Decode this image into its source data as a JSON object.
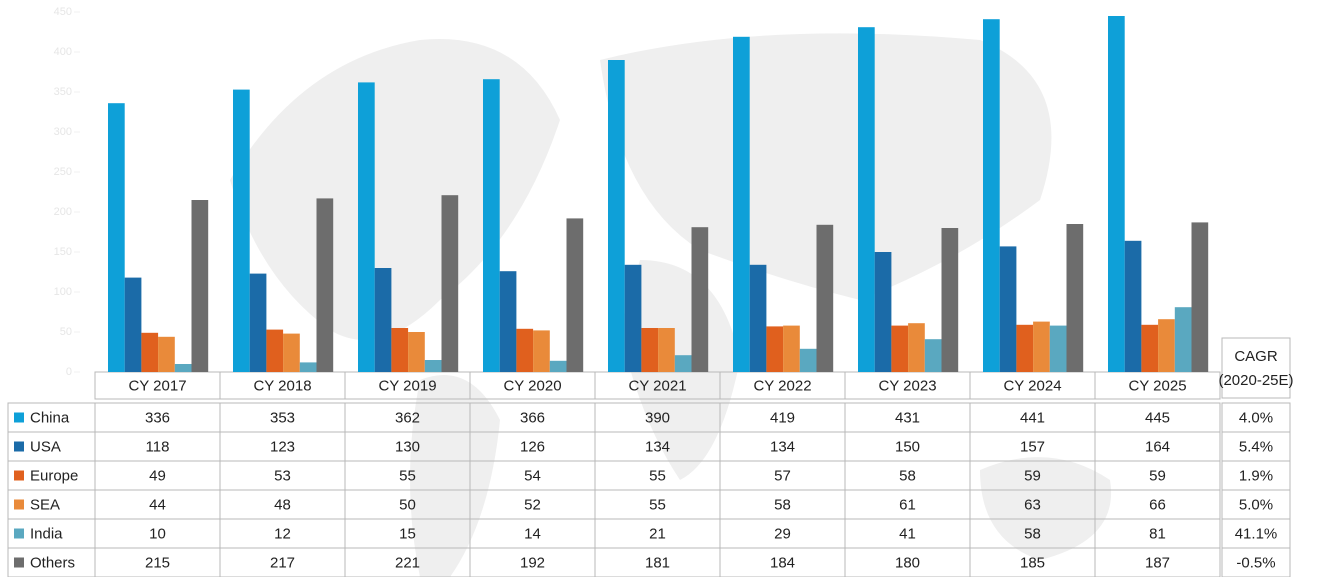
{
  "chart_data": {
    "type": "bar",
    "categories": [
      "CY 2017",
      "CY 2018",
      "CY 2019",
      "CY 2020",
      "CY 2021",
      "CY 2022",
      "CY 2023",
      "CY 2024",
      "CY 2025"
    ],
    "ylim": [
      0,
      465
    ],
    "yticks": [
      0,
      50,
      100,
      150,
      200,
      250,
      300,
      350,
      400,
      450
    ],
    "cagr_header": [
      "CAGR",
      "(2020-25E)"
    ],
    "series": [
      {
        "name": "China",
        "color": "#0ea0d8",
        "values": [
          336,
          353,
          362,
          366,
          390,
          419,
          431,
          441,
          445
        ],
        "cagr": "4.0%"
      },
      {
        "name": "USA",
        "color": "#1b6ba8",
        "values": [
          118,
          123,
          130,
          126,
          134,
          134,
          150,
          157,
          164
        ],
        "cagr": "5.4%"
      },
      {
        "name": "Europe",
        "color": "#e0601e",
        "values": [
          49,
          53,
          55,
          54,
          55,
          57,
          58,
          59,
          59
        ],
        "cagr": "1.9%"
      },
      {
        "name": "SEA",
        "color": "#e98a3a",
        "values": [
          44,
          48,
          50,
          52,
          55,
          58,
          61,
          63,
          66
        ],
        "cagr": "5.0%"
      },
      {
        "name": "India",
        "color": "#5aa8c0",
        "values": [
          10,
          12,
          15,
          14,
          21,
          29,
          41,
          58,
          81
        ],
        "cagr": "41.1%"
      },
      {
        "name": "Others",
        "color": "#6d6d6d",
        "values": [
          215,
          217,
          221,
          192,
          181,
          184,
          180,
          185,
          187
        ],
        "cagr": "-0.5%"
      }
    ]
  }
}
